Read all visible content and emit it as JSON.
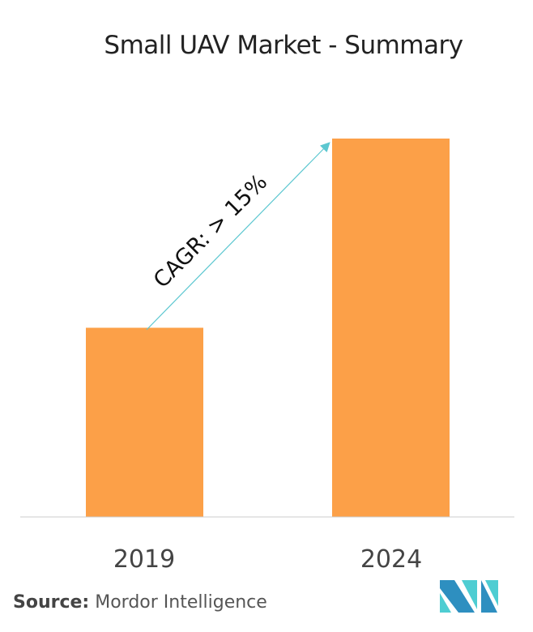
{
  "title": "Small UAV Market - Summary",
  "source_label": "Source:",
  "source_value": "Mordor Intelligence",
  "chart_data": {
    "type": "bar",
    "categories": [
      "2019",
      "2024"
    ],
    "values": [
      1,
      2.0
    ],
    "ylim": [
      0,
      2.0
    ],
    "title": "Small UAV Market - Summary",
    "annotation": "CAGR: > 15%",
    "grid": false,
    "colors": {
      "bar": "#FCA048",
      "arrow": "#5CC7D0",
      "baseline": "#cccccc"
    }
  },
  "logo": {
    "text": "Mordor Intelligence",
    "colors": [
      "#2E8FC0",
      "#4ECDD2"
    ]
  }
}
